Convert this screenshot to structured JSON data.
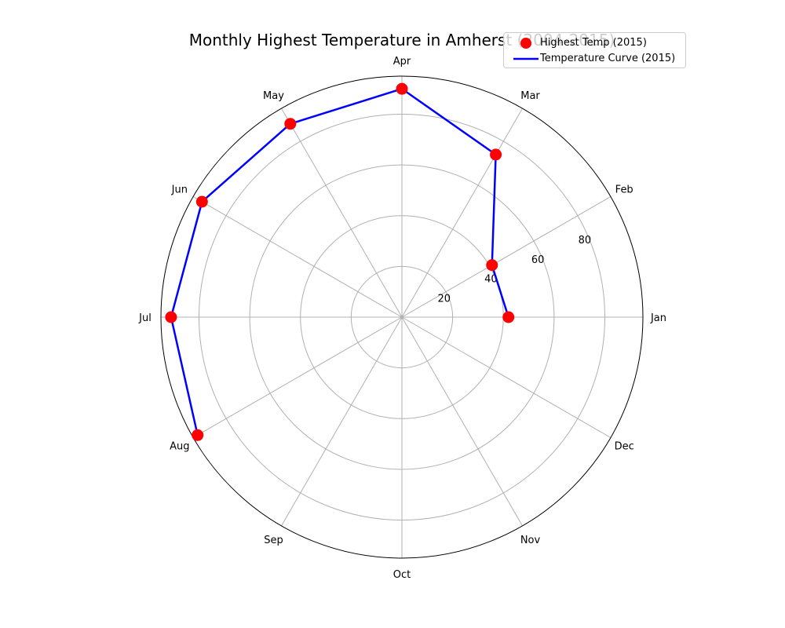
{
  "chart_data": {
    "type": "polar-line",
    "title": "Monthly Highest Temperature in Amherst (2004-2015)",
    "theta_labels": [
      "Jan",
      "Feb",
      "Mar",
      "Apr",
      "May",
      "Jun",
      "Jul",
      "Aug",
      "Sep",
      "Oct",
      "Nov",
      "Dec"
    ],
    "r_ticks": [
      "20",
      "40",
      "60",
      "80"
    ],
    "r_max": 95,
    "series": [
      {
        "name": "Highest Temp (2015)",
        "kind": "marker",
        "color": "#ff0000",
        "values": [
          42,
          41,
          74,
          90,
          88,
          91,
          91,
          93,
          null,
          null,
          null,
          null
        ]
      },
      {
        "name": "Temperature Curve (2015)",
        "kind": "line",
        "color": "#0000ff",
        "values": [
          42,
          41,
          74,
          90,
          88,
          91,
          91,
          93,
          null,
          null,
          null,
          null
        ]
      }
    ],
    "grid": true,
    "legend_position": "top-right"
  }
}
